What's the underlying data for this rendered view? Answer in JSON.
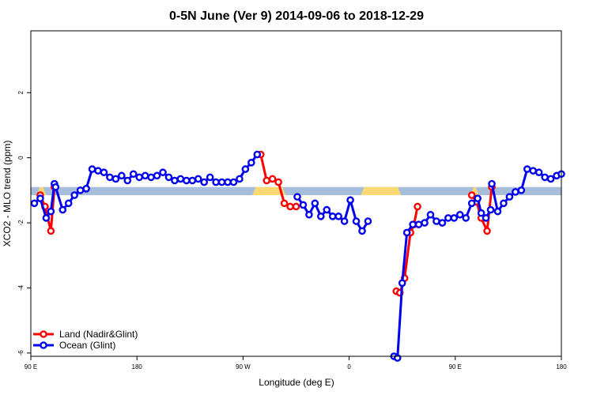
{
  "chart_data": {
    "type": "line",
    "title": "0-5N June (Ver 9)   2014-09-06 to 2018-12-29",
    "xlabel": "Longitude (deg E)",
    "ylabel": "XCO2 - MLO trend (ppm)",
    "xlim": [
      90,
      540
    ],
    "ylim": [
      -6.1,
      3.9
    ],
    "x_ticks": [
      {
        "value": 90,
        "label": "90 E"
      },
      {
        "value": 180,
        "label": "180"
      },
      {
        "value": 270,
        "label": "90 W"
      },
      {
        "value": 360,
        "label": "0"
      },
      {
        "value": 450,
        "label": "90 E"
      },
      {
        "value": 540,
        "label": "180"
      }
    ],
    "y_ticks": [
      {
        "value": 2,
        "label": "2"
      },
      {
        "value": 0,
        "label": "0"
      },
      {
        "value": -2,
        "label": "-2"
      },
      {
        "value": -4,
        "label": "-4"
      },
      {
        "value": -6,
        "label": "-6"
      }
    ],
    "grid": false,
    "legend_position": "bottom-left",
    "colors": {
      "land": "#ff0000",
      "ocean": "#0000ee",
      "ocean_band": "#a6bddb",
      "land_band": "#fdd976"
    },
    "surface_band": {
      "y_range": [
        -1.15,
        -0.9
      ],
      "land_segments": [
        [
          95,
          103
        ],
        [
          278,
          306
        ],
        [
          370,
          404
        ],
        [
          463,
          470
        ]
      ]
    },
    "series": [
      {
        "name": "Land (Nadir&Glint)",
        "color": "#ff0000",
        "segments": [
          {
            "x": [
              98,
              102,
              107,
              110
            ],
            "y": [
              -1.15,
              -1.5,
              -2.25,
              -0.9
            ]
          },
          {
            "x": [
              285,
              290,
              295,
              300,
              305,
              310,
              315
            ],
            "y": [
              0.1,
              -0.7,
              -0.65,
              -0.75,
              -1.4,
              -1.5,
              -1.5
            ]
          },
          {
            "x": [
              400,
              403,
              407,
              412,
              415,
              418
            ],
            "y": [
              -4.1,
              -4.15,
              -3.7,
              -2.3,
              -2.05,
              -1.5
            ]
          },
          {
            "x": [
              464,
              468,
              472,
              477,
              481
            ],
            "y": [
              -1.15,
              -1.35,
              -1.85,
              -2.25,
              -0.9
            ]
          }
        ]
      },
      {
        "name": "Ocean (Glint)",
        "color": "#0000ee",
        "segments": [
          {
            "x": [
              93,
              98,
              103,
              107,
              110
            ],
            "y": [
              -1.4,
              -1.25,
              -1.85,
              -1.65,
              -0.8
            ]
          },
          {
            "x": [
              111,
              117,
              122,
              127,
              132,
              137,
              142,
              147,
              152,
              157,
              162,
              167,
              172,
              177,
              182,
              187,
              192,
              197,
              202,
              207,
              212,
              217,
              222,
              227,
              232,
              237,
              242,
              247,
              252,
              257,
              262,
              267,
              272,
              277,
              282
            ],
            "y": [
              -0.9,
              -1.6,
              -1.4,
              -1.15,
              -1.0,
              -0.95,
              -0.35,
              -0.4,
              -0.45,
              -0.6,
              -0.65,
              -0.55,
              -0.7,
              -0.5,
              -0.6,
              -0.55,
              -0.6,
              -0.55,
              -0.45,
              -0.6,
              -0.7,
              -0.65,
              -0.7,
              -0.7,
              -0.65,
              -0.75,
              -0.6,
              -0.75,
              -0.75,
              -0.75,
              -0.75,
              -0.65,
              -0.35,
              -0.15,
              0.1
            ]
          },
          {
            "x": [
              316,
              321,
              326,
              331,
              336,
              341,
              346,
              351,
              356,
              361,
              366,
              371,
              376
            ],
            "y": [
              -1.2,
              -1.45,
              -1.75,
              -1.4,
              -1.8,
              -1.6,
              -1.8,
              -1.8,
              -1.95,
              -1.3,
              -1.95,
              -2.25,
              -1.95
            ]
          },
          {
            "x": [
              398,
              401,
              405,
              409,
              414,
              419,
              424,
              429,
              434,
              439,
              444,
              449,
              454,
              459,
              464,
              469,
              472,
              476,
              480
            ],
            "y": [
              -6.1,
              -6.15,
              -3.85,
              -2.3,
              -2.05,
              -2.05,
              -2.0,
              -1.75,
              -1.95,
              -2.0,
              -1.85,
              -1.85,
              -1.75,
              -1.85,
              -1.4,
              -1.25,
              -1.7,
              -1.85,
              -1.6
            ]
          },
          {
            "x": [
              481,
              486,
              491,
              496,
              501,
              506,
              511,
              516,
              521,
              526,
              531,
              536,
              540
            ],
            "y": [
              -0.8,
              -1.65,
              -1.4,
              -1.2,
              -1.05,
              -1.0,
              -0.35,
              -0.4,
              -0.45,
              -0.6,
              -0.65,
              -0.55,
              -0.5
            ]
          }
        ]
      }
    ]
  }
}
